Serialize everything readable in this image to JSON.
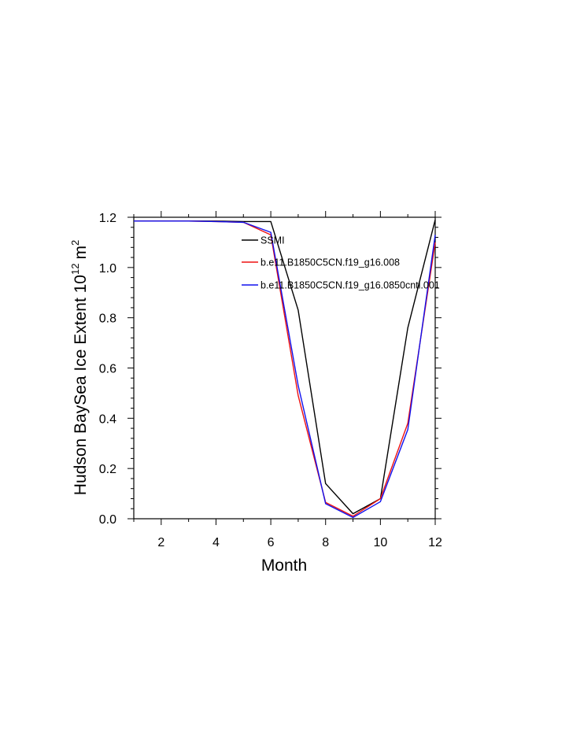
{
  "chart_data": {
    "type": "line",
    "title": "",
    "xlabel": "Month",
    "ylabel": {
      "main": "Hudson BaySea Ice Extent 10",
      "exponent": "12",
      "unit": "m",
      "unit_exponent": "2"
    },
    "xlim": [
      1,
      12
    ],
    "ylim": [
      0.0,
      1.2
    ],
    "xticks": [
      2,
      4,
      6,
      8,
      10,
      12
    ],
    "yticks": [
      0.0,
      0.2,
      0.4,
      0.6,
      0.8,
      1.0,
      1.2
    ],
    "ytick_labels": [
      "0.0",
      "0.2",
      "0.4",
      "0.6",
      "0.8",
      "1.0",
      "1.2"
    ],
    "grid": false,
    "legend_position": "inside-top-right",
    "x": [
      1,
      2,
      3,
      4,
      5,
      6,
      7,
      8,
      9,
      10,
      11,
      12
    ],
    "series": [
      {
        "name": "SSMI",
        "color": "#000000",
        "values": [
          1.185,
          1.185,
          1.185,
          1.185,
          1.183,
          1.183,
          0.83,
          0.14,
          0.02,
          0.08,
          0.76,
          1.19
        ]
      },
      {
        "name": "b.e11.B1850C5CN.f19_g16.008",
        "color": "#ee1111",
        "values": [
          1.185,
          1.185,
          1.185,
          1.183,
          1.18,
          1.13,
          0.49,
          0.065,
          0.01,
          0.08,
          0.38,
          1.1
        ]
      },
      {
        "name": "b.e11.B1850C5CN.f19_g16.0850cntl.001",
        "color": "#1111ee",
        "values": [
          1.185,
          1.185,
          1.185,
          1.183,
          1.18,
          1.14,
          0.53,
          0.06,
          0.005,
          0.068,
          0.355,
          1.13
        ]
      }
    ]
  }
}
